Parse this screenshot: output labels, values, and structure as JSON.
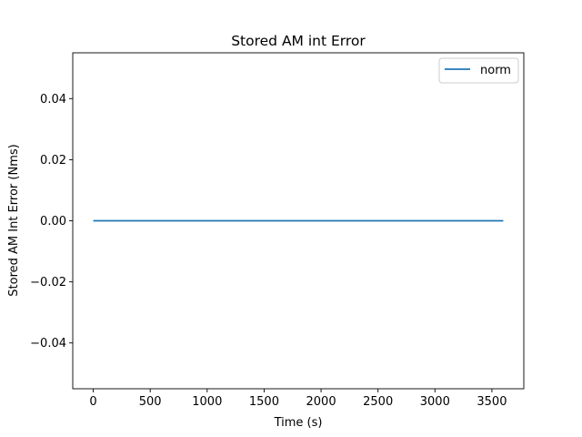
{
  "chart_data": {
    "type": "line",
    "title": "Stored AM int Error",
    "xlabel": "Time (s)",
    "ylabel": "Stored AM Int Error (Nms)",
    "xlim": [
      -180,
      3780
    ],
    "ylim": [
      -0.055,
      0.055
    ],
    "xticks": [
      0,
      500,
      1000,
      1500,
      2000,
      2500,
      3000,
      3500
    ],
    "xtick_labels": [
      "0",
      "500",
      "1000",
      "1500",
      "2000",
      "2500",
      "3000",
      "3500"
    ],
    "yticks": [
      -0.04,
      -0.02,
      0.0,
      0.02,
      0.04
    ],
    "ytick_labels": [
      "−0.04",
      "−0.02",
      "0.00",
      "0.02",
      "0.04"
    ],
    "grid": false,
    "legend_position": "top-right",
    "series": [
      {
        "name": "norm",
        "color": "#1f77b4",
        "x": [
          0,
          3600
        ],
        "y": [
          0.0,
          0.0
        ]
      }
    ]
  }
}
